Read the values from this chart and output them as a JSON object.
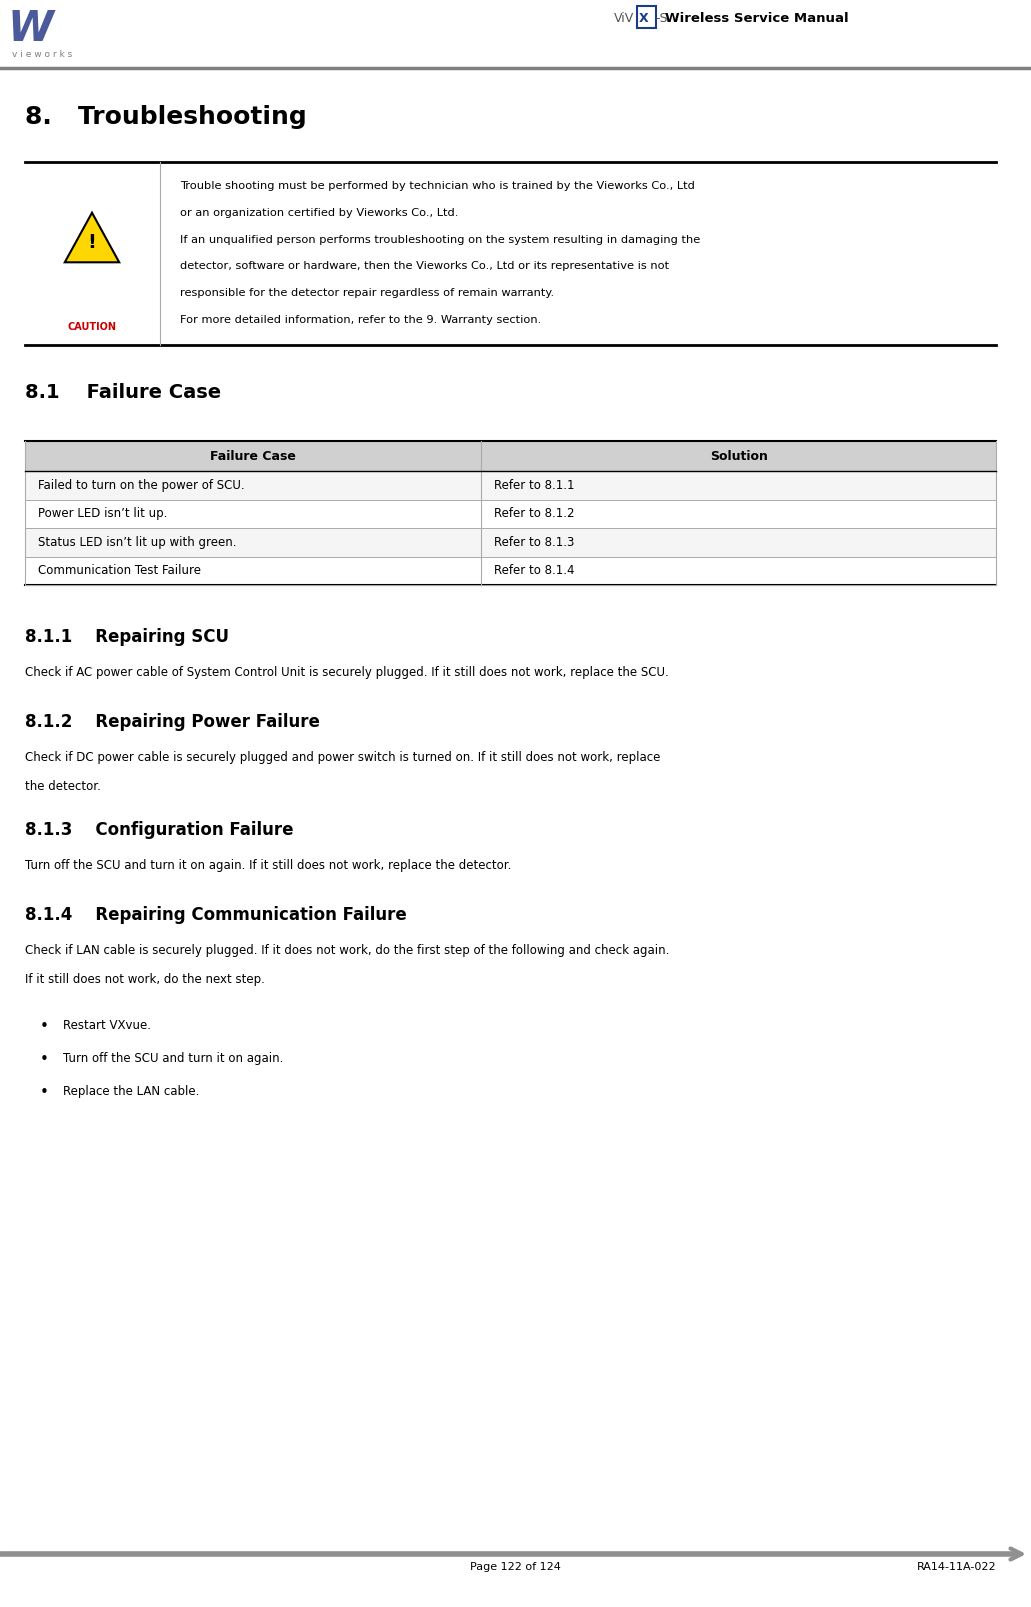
{
  "page_width": 10.31,
  "page_height": 16.07,
  "bg_color": "#ffffff",
  "header_line_color": "#808080",
  "header_title": "Wireless Service Manual",
  "section_title": "8.   Troubleshooting",
  "caution_text_lines": [
    "Trouble shooting must be performed by technician who is trained by the Vieworks Co., Ltd",
    "or an organization certified by Vieworks Co., Ltd.",
    "If an unqualified person performs troubleshooting on the system resulting in damaging the",
    "detector, software or hardware, then the Vieworks Co., Ltd or its representative is not",
    "responsible for the detector repair regardless of remain warranty.",
    "For more detailed information, refer to the 9. Warranty section."
  ],
  "subsection_81": "8.1    Failure Case",
  "table_header": [
    "Failure Case",
    "Solution"
  ],
  "table_rows": [
    [
      "Failed to turn on the power of SCU.",
      "Refer to 8.1.1"
    ],
    [
      "Power LED isn’t lit up.",
      "Refer to 8.1.2"
    ],
    [
      "Status LED isn’t lit up with green.",
      "Refer to 8.1.3"
    ],
    [
      "Communication Test Failure",
      "Refer to 8.1.4"
    ]
  ],
  "subsection_811": "8.1.1    Repairing SCU",
  "text_811": "Check if AC power cable of System Control Unit is securely plugged. If it still does not work, replace the SCU.",
  "subsection_812": "8.1.2    Repairing Power Failure",
  "text_812_lines": [
    "Check if DC power cable is securely plugged and power switch is turned on. If it still does not work, replace",
    "the detector."
  ],
  "subsection_813": "8.1.3    Configuration Failure",
  "text_813": "Turn off the SCU and turn it on again. If it still does not work, replace the detector.",
  "subsection_814": "8.1.4    Repairing Communication Failure",
  "text_814_lines": [
    "Check if LAN cable is securely plugged. If it does not work, do the first step of the following and check again.",
    "If it still does not work, do the next step."
  ],
  "bullets_814": [
    "Restart VXvue.",
    "Turn off the SCU and turn it on again.",
    "Replace the LAN cable."
  ],
  "footer_page": "Page 122 of 124",
  "footer_doc": "RA14-11A-022",
  "arrow_color": "#909090",
  "table_header_bg": "#d0d0d0",
  "table_border_color": "#000000"
}
